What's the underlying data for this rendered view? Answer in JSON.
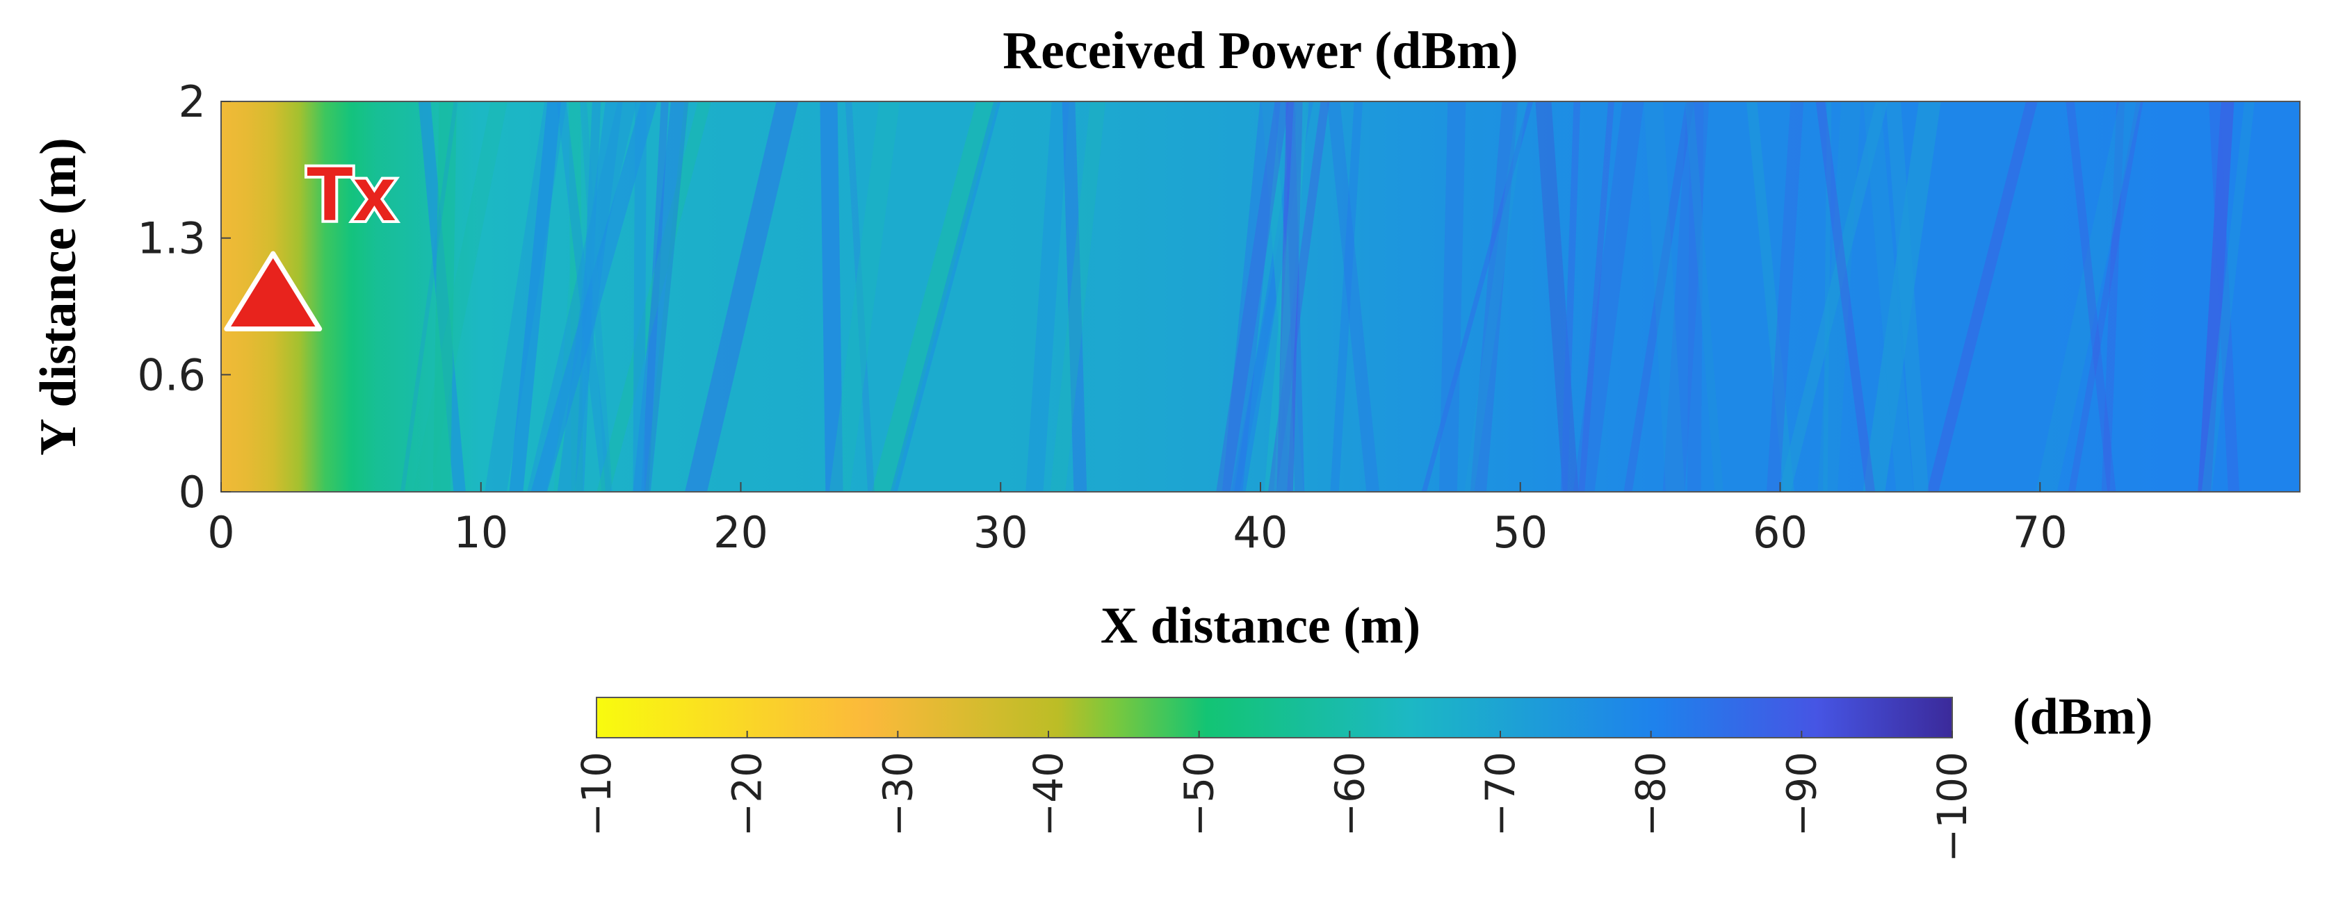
{
  "chart_data": {
    "type": "heatmap",
    "title": "Received Power (dBm)",
    "xlabel": "X distance (m)",
    "ylabel": "Y distance (m)",
    "xlim": [
      0,
      80
    ],
    "ylim": [
      0,
      2
    ],
    "x_ticks": [
      0,
      10,
      20,
      30,
      40,
      50,
      60,
      70
    ],
    "y_ticks": [
      0,
      0.6,
      1.3,
      2
    ],
    "x_tick_labels": [
      "0",
      "10",
      "20",
      "30",
      "40",
      "50",
      "60",
      "70"
    ],
    "y_tick_labels": [
      "0",
      "0.6",
      "1.3",
      "2"
    ],
    "grid": false,
    "colorbar": {
      "label": "(dBm)",
      "range": [
        -10,
        -100
      ],
      "ticks": [
        -10,
        -20,
        -30,
        -40,
        -50,
        -60,
        -70,
        -80,
        -90,
        -100
      ],
      "tick_labels": [
        "−10",
        "−20",
        "−30",
        "−40",
        "−50",
        "−60",
        "−70",
        "−80",
        "−90",
        "−100"
      ],
      "placement": "bottom",
      "colormap": "parula (reversed)"
    },
    "profile_x": [
      0,
      1,
      2,
      3,
      4,
      5,
      6,
      8,
      10,
      15,
      20,
      25,
      30,
      35,
      40,
      45,
      50,
      55,
      60,
      65,
      70,
      75,
      80
    ],
    "profile_power_dbm": [
      -30,
      -32,
      -36,
      -42,
      -48,
      -52,
      -56,
      -60,
      -64,
      -66,
      -67,
      -68,
      -68,
      -69,
      -71,
      -74,
      -76,
      -78,
      -78,
      -79,
      -79,
      -80,
      -80
    ],
    "annotations": [
      {
        "text": "Tx",
        "x": 2,
        "y": 1.0,
        "marker": "triangle",
        "color": "#e8231d"
      }
    ]
  }
}
